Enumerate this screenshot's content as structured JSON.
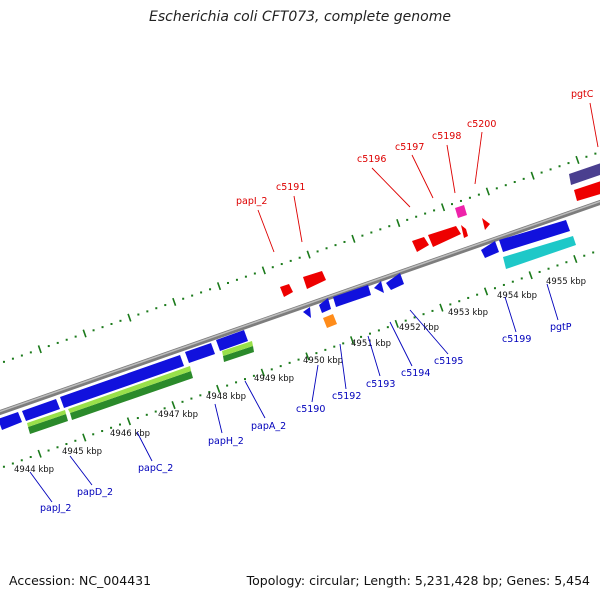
{
  "title": "Escherichia coli CFT073, complete genome",
  "footer": {
    "accession": "Accession: NC_004431",
    "stats": "Topology: circular; Length: 5,231,428 bp; Genes: 5,454"
  },
  "colors": {
    "backbone": "#8a8a8a",
    "tick_green": "#1b7a1b",
    "label_forward": "#dd0000",
    "label_reverse": "#0000bb",
    "leader": "#333333"
  },
  "scale_labels": [
    "4944 kbp",
    "4945 kbp",
    "4946 kbp",
    "4947 kbp",
    "4948 kbp",
    "4949 kbp",
    "4950 kbp",
    "4951 kbp",
    "4952 kbp",
    "4953 kbp",
    "4954 kbp",
    "4955 kbp"
  ],
  "forward_gene_labels": [
    "papI_2",
    "c5191",
    "c5196",
    "c5197",
    "c5198",
    "c5200",
    "pgtC"
  ],
  "reverse_gene_labels": [
    "papJ_2",
    "papD_2",
    "papC_2",
    "papH_2",
    "papA_2",
    "c5190",
    "c5192",
    "c5193",
    "c5194",
    "c5195",
    "c5199",
    "pgtP"
  ]
}
